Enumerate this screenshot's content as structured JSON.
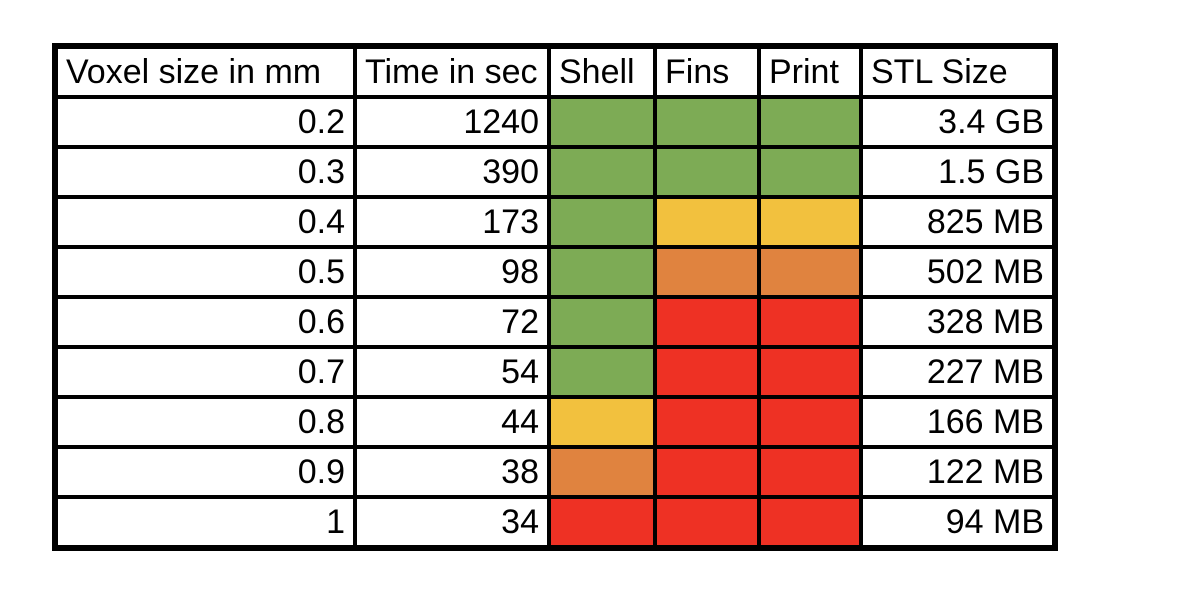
{
  "chart_data": {
    "type": "table",
    "columns": [
      {
        "key": "voxel_size",
        "label": "Voxel size in mm",
        "kind": "number"
      },
      {
        "key": "time_sec",
        "label": "Time in sec",
        "kind": "number"
      },
      {
        "key": "shell",
        "label": "Shell",
        "kind": "status"
      },
      {
        "key": "fins",
        "label": "Fins",
        "kind": "status"
      },
      {
        "key": "print",
        "label": "Print",
        "kind": "status"
      },
      {
        "key": "stl_size",
        "label": "STL Size",
        "kind": "number"
      }
    ],
    "rows": [
      {
        "voxel_size": "0.2",
        "time_sec": "1240",
        "shell": "green",
        "fins": "green",
        "print": "green",
        "stl_size": "3.4 GB"
      },
      {
        "voxel_size": "0.3",
        "time_sec": "390",
        "shell": "green",
        "fins": "green",
        "print": "green",
        "stl_size": "1.5 GB"
      },
      {
        "voxel_size": "0.4",
        "time_sec": "173",
        "shell": "green",
        "fins": "yellow",
        "print": "yellow",
        "stl_size": "825 MB"
      },
      {
        "voxel_size": "0.5",
        "time_sec": "98",
        "shell": "green",
        "fins": "orange",
        "print": "orange",
        "stl_size": "502 MB"
      },
      {
        "voxel_size": "0.6",
        "time_sec": "72",
        "shell": "green",
        "fins": "red",
        "print": "red",
        "stl_size": "328 MB"
      },
      {
        "voxel_size": "0.7",
        "time_sec": "54",
        "shell": "green",
        "fins": "red",
        "print": "red",
        "stl_size": "227 MB"
      },
      {
        "voxel_size": "0.8",
        "time_sec": "44",
        "shell": "yellow",
        "fins": "red",
        "print": "red",
        "stl_size": "166 MB"
      },
      {
        "voxel_size": "0.9",
        "time_sec": "38",
        "shell": "orange",
        "fins": "red",
        "print": "red",
        "stl_size": "122 MB"
      },
      {
        "voxel_size": "1",
        "time_sec": "34",
        "shell": "red",
        "fins": "red",
        "print": "red",
        "stl_size": "94 MB"
      }
    ],
    "status_colors": {
      "green": "#7DAB55",
      "yellow": "#F2C13E",
      "orange": "#E0833F",
      "red": "#EE3124"
    }
  }
}
